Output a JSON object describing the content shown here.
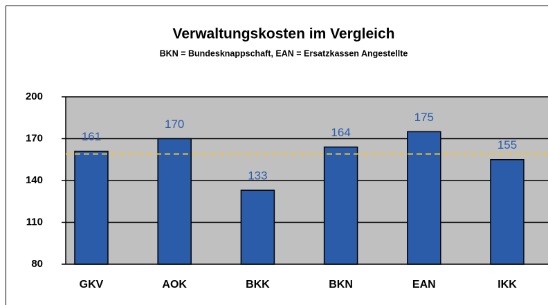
{
  "chart_data": {
    "type": "bar",
    "title": "Verwaltungskosten im Vergleich",
    "subtitle": "BKN = Bundesknappschaft, EAN = Ersatzkassen Angestellte",
    "categories": [
      "GKV",
      "AOK",
      "BKK",
      "BKN",
      "EAN",
      "IKK"
    ],
    "values": [
      161,
      170,
      133,
      164,
      175,
      155
    ],
    "color": "#2a5caa",
    "ylim": [
      80,
      200
    ],
    "yticks": [
      80,
      110,
      140,
      170,
      200
    ],
    "grid": true,
    "reference_line": {
      "value": 159,
      "color": "#f2c12e"
    }
  }
}
